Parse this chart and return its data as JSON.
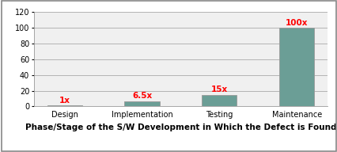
{
  "categories": [
    "Design",
    "Implementation",
    "Testing",
    "Maintenance"
  ],
  "values": [
    1,
    6.5,
    15,
    100
  ],
  "labels": [
    "1x",
    "6.5x",
    "15x",
    "100x"
  ],
  "bar_color": "#6b9e96",
  "label_color": "#ff0000",
  "ylim": [
    0,
    120
  ],
  "yticks": [
    0,
    20,
    40,
    60,
    80,
    100,
    120
  ],
  "xlabel": "Phase/Stage of the S/W Development in Which the Defect is Found",
  "xlabel_fontsize": 7.5,
  "xlabel_fontweight": "bold",
  "tick_fontsize": 7,
  "label_fontsize": 7.5,
  "background_color": "#ffffff",
  "plot_bg_color": "#f0f0f0",
  "grid_color": "#aaaaaa",
  "border_color": "#999999"
}
